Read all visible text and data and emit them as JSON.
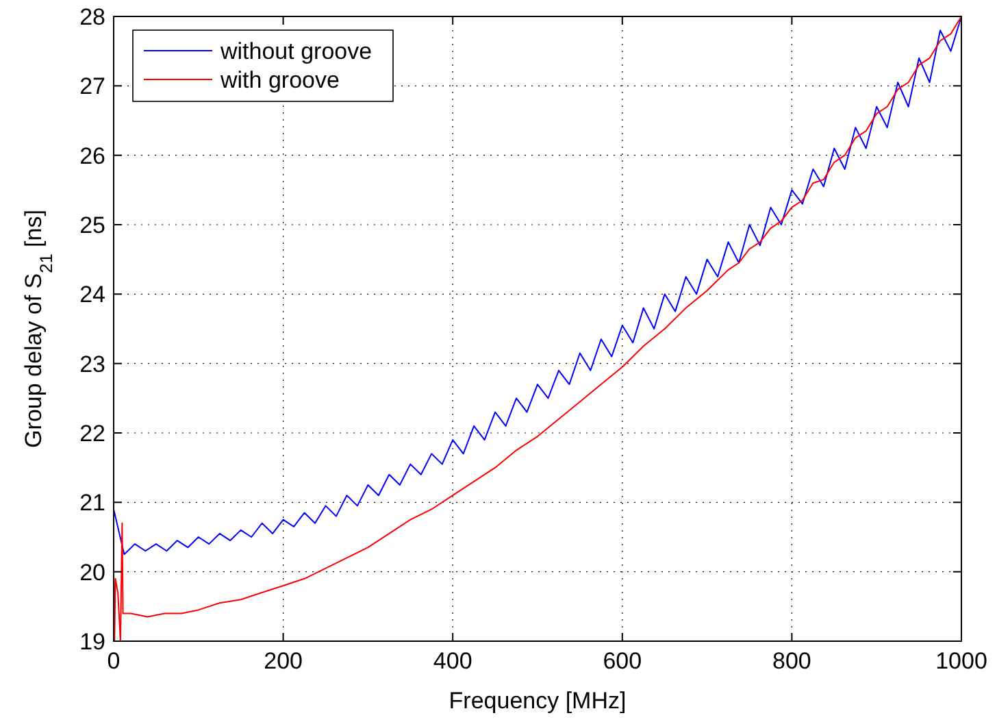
{
  "chart_data": {
    "type": "line",
    "xlabel": "Frequency [MHz]",
    "ylabel": "Group delay of S$_{21}$ [ns]",
    "xlim": [
      0,
      1000
    ],
    "ylim": [
      19,
      28
    ],
    "xticks": [
      0,
      200,
      400,
      600,
      800,
      1000
    ],
    "yticks": [
      19,
      20,
      21,
      22,
      23,
      24,
      25,
      26,
      27,
      28
    ],
    "grid": true,
    "legend": "top left",
    "line_style": "solid",
    "marker": "none",
    "series": [
      {
        "name": "without groove",
        "color": "#0000ff",
        "x": [
          0,
          12.5,
          25,
          37.5,
          50,
          62.5,
          75,
          87.5,
          100,
          112.5,
          125,
          137.5,
          150,
          162.5,
          175,
          187.5,
          200,
          212.5,
          225,
          237.5,
          250,
          262.5,
          275,
          287.5,
          300,
          312.5,
          325,
          337.5,
          350,
          362.5,
          375,
          387.5,
          400,
          412.5,
          425,
          437.5,
          450,
          462.5,
          475,
          487.5,
          500,
          512.5,
          525,
          537.5,
          550,
          562.5,
          575,
          587.5,
          600,
          612.5,
          625,
          637.5,
          650,
          662.5,
          675,
          687.5,
          700,
          712.5,
          725,
          737.5,
          750,
          762.5,
          775,
          787.5,
          800,
          812.5,
          825,
          837.5,
          850,
          862.5,
          875,
          887.5,
          900,
          912.5,
          925,
          937.5,
          950,
          962.5,
          975,
          987.5,
          1000
        ],
        "values": [
          20.9,
          20.25,
          20.4,
          20.3,
          20.4,
          20.3,
          20.45,
          20.35,
          20.5,
          20.4,
          20.55,
          20.45,
          20.6,
          20.5,
          20.7,
          20.55,
          20.75,
          20.65,
          20.85,
          20.7,
          20.95,
          20.8,
          21.1,
          20.95,
          21.25,
          21.1,
          21.4,
          21.25,
          21.55,
          21.4,
          21.7,
          21.55,
          21.9,
          21.7,
          22.1,
          21.9,
          22.3,
          22.1,
          22.5,
          22.3,
          22.7,
          22.5,
          22.9,
          22.7,
          23.15,
          22.9,
          23.35,
          23.1,
          23.55,
          23.3,
          23.8,
          23.5,
          24.0,
          23.75,
          24.25,
          24.0,
          24.5,
          24.25,
          24.75,
          24.45,
          25.0,
          24.7,
          25.25,
          25.0,
          25.5,
          25.3,
          25.8,
          25.55,
          26.1,
          25.8,
          26.4,
          26.1,
          26.7,
          26.4,
          27.05,
          26.7,
          27.4,
          27.05,
          27.8,
          27.5,
          28.0
        ]
      },
      {
        "name": "with groove",
        "color": "#ff0000",
        "x": [
          0,
          1,
          2,
          5,
          8,
          10,
          11,
          20,
          40,
          60,
          80,
          100,
          125,
          150,
          175,
          200,
          225,
          250,
          275,
          300,
          325,
          350,
          375,
          400,
          425,
          450,
          475,
          500,
          525,
          550,
          575,
          600,
          625,
          650,
          675,
          700,
          725,
          737.5,
          750,
          762.5,
          775,
          787.5,
          800,
          812.5,
          825,
          837.5,
          850,
          862.5,
          875,
          887.5,
          900,
          912.5,
          925,
          937.5,
          950,
          962.5,
          975,
          987.5,
          1000
        ],
        "values": [
          20.0,
          19.0,
          19.9,
          19.7,
          19.0,
          20.7,
          19.4,
          19.4,
          19.35,
          19.4,
          19.4,
          19.45,
          19.55,
          19.6,
          19.7,
          19.8,
          19.9,
          20.05,
          20.2,
          20.35,
          20.55,
          20.75,
          20.9,
          21.1,
          21.3,
          21.5,
          21.75,
          21.95,
          22.2,
          22.45,
          22.7,
          22.95,
          23.25,
          23.5,
          23.8,
          24.05,
          24.35,
          24.45,
          24.65,
          24.75,
          24.95,
          25.05,
          25.25,
          25.35,
          25.6,
          25.65,
          25.9,
          26.0,
          26.25,
          26.35,
          26.6,
          26.7,
          26.95,
          27.05,
          27.3,
          27.4,
          27.65,
          27.75,
          28.0
        ]
      }
    ]
  }
}
